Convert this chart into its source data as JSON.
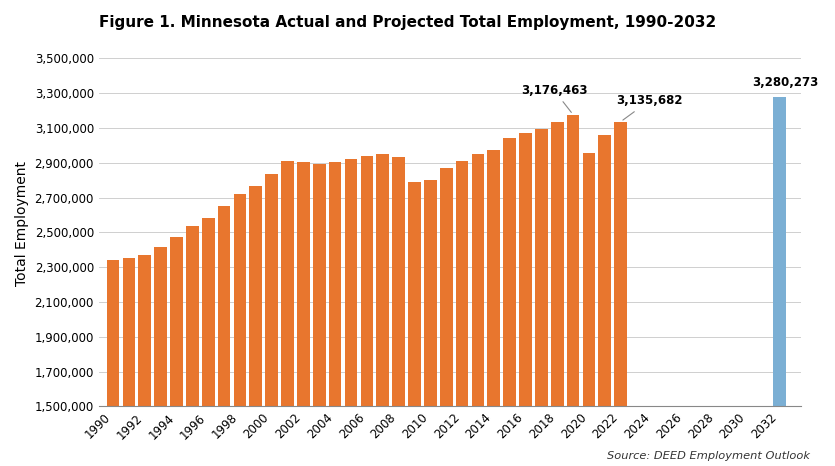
{
  "title": "Figure 1. Minnesota Actual and Projected Total Employment, 1990-2032",
  "ylabel": "Total Employment",
  "source": "Source: DEED Employment Outlook",
  "ylim": [
    1500000,
    3600000
  ],
  "yticks": [
    1500000,
    1700000,
    1900000,
    2100000,
    2300000,
    2500000,
    2700000,
    2900000,
    3100000,
    3300000,
    3500000
  ],
  "bar_data": [
    {
      "year": 1990,
      "value": 2340000,
      "color": "#E8762E"
    },
    {
      "year": 1991,
      "value": 2352000,
      "color": "#E8762E"
    },
    {
      "year": 1992,
      "value": 2368000,
      "color": "#E8762E"
    },
    {
      "year": 1993,
      "value": 2415000,
      "color": "#E8762E"
    },
    {
      "year": 1994,
      "value": 2472000,
      "color": "#E8762E"
    },
    {
      "year": 1995,
      "value": 2535000,
      "color": "#E8762E"
    },
    {
      "year": 1996,
      "value": 2582000,
      "color": "#E8762E"
    },
    {
      "year": 1997,
      "value": 2650000,
      "color": "#E8762E"
    },
    {
      "year": 1998,
      "value": 2718000,
      "color": "#E8762E"
    },
    {
      "year": 1999,
      "value": 2768000,
      "color": "#E8762E"
    },
    {
      "year": 2000,
      "value": 2838000,
      "color": "#E8762E"
    },
    {
      "year": 2001,
      "value": 2908000,
      "color": "#E8762E"
    },
    {
      "year": 2002,
      "value": 2905000,
      "color": "#E8762E"
    },
    {
      "year": 2003,
      "value": 2892000,
      "color": "#E8762E"
    },
    {
      "year": 2004,
      "value": 2905000,
      "color": "#E8762E"
    },
    {
      "year": 2005,
      "value": 2920000,
      "color": "#E8762E"
    },
    {
      "year": 2006,
      "value": 2940000,
      "color": "#E8762E"
    },
    {
      "year": 2007,
      "value": 2948000,
      "color": "#E8762E"
    },
    {
      "year": 2008,
      "value": 2932000,
      "color": "#E8762E"
    },
    {
      "year": 2009,
      "value": 2788000,
      "color": "#E8762E"
    },
    {
      "year": 2010,
      "value": 2798000,
      "color": "#E8762E"
    },
    {
      "year": 2011,
      "value": 2872000,
      "color": "#E8762E"
    },
    {
      "year": 2012,
      "value": 2910000,
      "color": "#E8762E"
    },
    {
      "year": 2013,
      "value": 2950000,
      "color": "#E8762E"
    },
    {
      "year": 2014,
      "value": 2972000,
      "color": "#E8762E"
    },
    {
      "year": 2015,
      "value": 3042000,
      "color": "#E8762E"
    },
    {
      "year": 2016,
      "value": 3072000,
      "color": "#E8762E"
    },
    {
      "year": 2017,
      "value": 3095000,
      "color": "#E8762E"
    },
    {
      "year": 2018,
      "value": 3132000,
      "color": "#E8762E"
    },
    {
      "year": 2019,
      "value": 3176463,
      "color": "#E8762E"
    },
    {
      "year": 2020,
      "value": 2958000,
      "color": "#E8762E"
    },
    {
      "year": 2021,
      "value": 3062000,
      "color": "#E8762E"
    },
    {
      "year": 2022,
      "value": 3135682,
      "color": "#E8762E"
    },
    {
      "year": 2032,
      "value": 3280273,
      "color": "#7BAFD4"
    }
  ],
  "annotation_2019": {
    "year": 2019,
    "value": 3176463,
    "label": "3,176,463"
  },
  "annotation_2022": {
    "year": 2022,
    "value": 3135682,
    "label": "3,135,682"
  },
  "annotation_2032": {
    "year": 2032,
    "value": 3280273,
    "label": "3,280,273"
  },
  "bg_color": "#FFFFFF",
  "title_fontsize": 11,
  "axis_label_fontsize": 10,
  "tick_fontsize": 8.5,
  "orange_color": "#E8762E",
  "blue_color": "#7BAFD4"
}
